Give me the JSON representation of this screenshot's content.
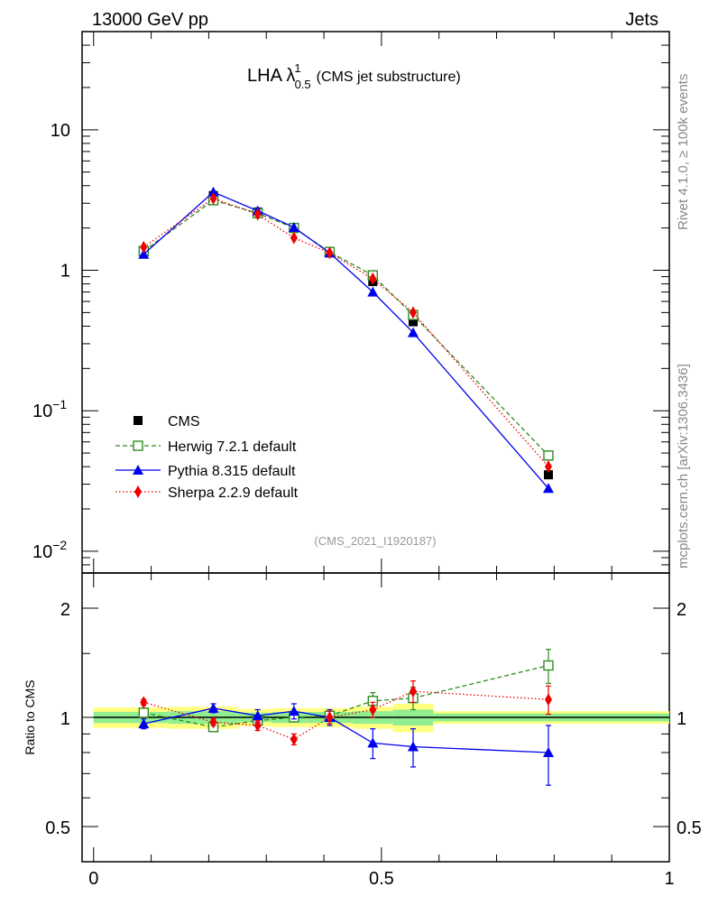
{
  "header": {
    "left": "13000 GeV pp",
    "right": "Jets"
  },
  "side_text": {
    "rivet": "Rivet 4.1.0, ≥ 100k events",
    "mcplots": "mcplots.cern.ch [arXiv:1306.3436]"
  },
  "chart_data": {
    "type": "scatter",
    "title_main": "LHA λ",
    "title_sup": "1",
    "title_sub": "0.5",
    "title_suffix": "(CMS jet substructure)",
    "watermark": "(CMS_2021_I1920187)",
    "x": [
      0.087,
      0.208,
      0.285,
      0.348,
      0.41,
      0.485,
      0.555,
      0.79
    ],
    "xlim": [
      -0.02,
      1.0
    ],
    "xticks": [
      0,
      0.5,
      1
    ],
    "xtick_labels": [
      "0",
      "0.5",
      "1"
    ],
    "main_panel": {
      "yscale": "log",
      "ylim": [
        0.007,
        50
      ],
      "ytick_labels": [
        {
          "base": "10",
          "exp": "−2",
          "value": 0.01
        },
        {
          "base": "10",
          "exp": "−1",
          "value": 0.1
        },
        {
          "base": "1",
          "exp": "",
          "value": 1
        },
        {
          "base": "10",
          "exp": "",
          "value": 10
        }
      ],
      "series": [
        {
          "name": "CMS",
          "color": "#000000",
          "marker": "square-filled",
          "line": "none",
          "values": [
            1.35,
            3.4,
            2.6,
            2.0,
            1.33,
            0.83,
            0.43,
            0.035
          ]
        },
        {
          "name": "Herwig 7.2.1 default",
          "color": "#2e8b1e",
          "marker": "square-open",
          "line": "dashed",
          "values": [
            1.37,
            3.15,
            2.55,
            2.0,
            1.35,
            0.92,
            0.48,
            0.048
          ]
        },
        {
          "name": "Pythia 8.315 default",
          "color": "#0000ee",
          "marker": "triangle",
          "line": "solid",
          "values": [
            1.3,
            3.6,
            2.65,
            2.02,
            1.33,
            0.7,
            0.36,
            0.028
          ]
        },
        {
          "name": "Sherpa 2.2.9 default",
          "color": "#ee0000",
          "marker": "diamond",
          "line": "dotted",
          "values": [
            1.46,
            3.25,
            2.5,
            1.7,
            1.33,
            0.87,
            0.5,
            0.04
          ]
        }
      ]
    },
    "ratio_panel": {
      "ylabel": "Ratio to CMS",
      "yscale": "log",
      "ylim": [
        0.4,
        2.5
      ],
      "ytick_labels": [
        "0.5",
        "1",
        "2"
      ],
      "ytick_values": [
        0.5,
        1,
        2
      ],
      "band_edges": [
        0,
        0.13,
        0.25,
        0.31,
        0.37,
        0.45,
        0.52,
        0.59,
        1.0
      ],
      "band_outer": [
        0.065,
        0.07,
        0.055,
        0.06,
        0.06,
        0.07,
        0.09,
        0.04
      ],
      "band_inner": [
        0.035,
        0.04,
        0.03,
        0.035,
        0.035,
        0.04,
        0.05,
        0.025
      ],
      "series": [
        {
          "name": "Herwig 7.2.1 default",
          "values": [
            1.03,
            0.94,
            0.98,
            1.0,
            1.01,
            1.11,
            1.13,
            1.39
          ],
          "errors": [
            0.03,
            0.02,
            0.02,
            0.02,
            0.03,
            0.06,
            0.08,
            0.15
          ]
        },
        {
          "name": "Pythia 8.315 default",
          "values": [
            0.96,
            1.06,
            1.01,
            1.04,
            1.0,
            0.85,
            0.83,
            0.8
          ],
          "errors": [
            0.03,
            0.03,
            0.04,
            0.05,
            0.05,
            0.08,
            0.1,
            0.15
          ]
        },
        {
          "name": "Sherpa 2.2.9 default",
          "values": [
            1.1,
            0.97,
            0.95,
            0.87,
            1.0,
            1.05,
            1.18,
            1.12
          ],
          "errors": [
            0.02,
            0.02,
            0.03,
            0.03,
            0.04,
            0.05,
            0.08,
            0.1
          ]
        }
      ]
    }
  }
}
